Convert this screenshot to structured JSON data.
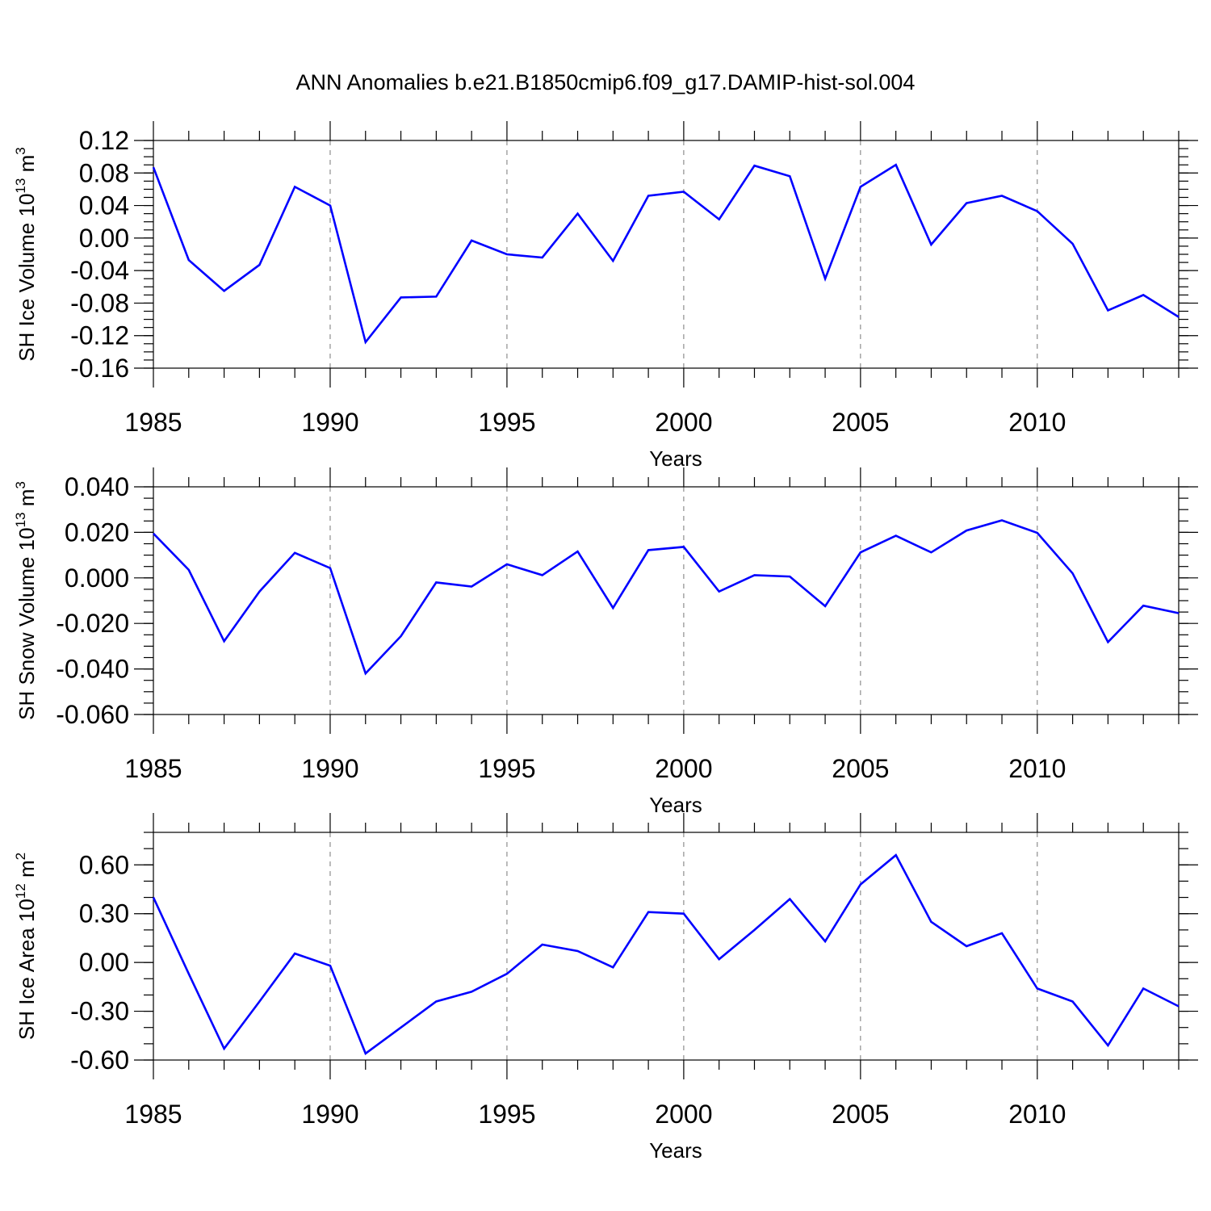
{
  "title": "ANN Anomalies b.e21.B1850cmip6.f09_g17.DAMIP-hist-sol.004",
  "chart_data": [
    {
      "type": "line",
      "ylabel": "SH Ice Volume 10",
      "ylabel_sup": "13",
      "ylabel_unit": " m",
      "ylabel_unit_sup": "3",
      "xlabel": "Years",
      "ylim": [
        -0.16,
        0.12
      ],
      "yticks": [
        "0.12",
        "0.08",
        "0.04",
        "0.00",
        "-0.04",
        "-0.08",
        "-0.12",
        "-0.16"
      ],
      "ytick_values": [
        0.12,
        0.08,
        0.04,
        0.0,
        -0.04,
        -0.08,
        -0.12,
        -0.16
      ],
      "xlim": [
        1985,
        2014
      ],
      "xticks": [
        "1985",
        "1990",
        "1995",
        "2000",
        "2005",
        "2010"
      ],
      "xtick_values": [
        1985,
        1990,
        1995,
        2000,
        2005,
        2010
      ],
      "grid": "dashed vertical lines at labeled years",
      "series": [
        {
          "color": "#0000ff",
          "x": [
            1985,
            1986,
            1987,
            1988,
            1989,
            1990,
            1991,
            1992,
            1993,
            1994,
            1995,
            1996,
            1997,
            1998,
            1999,
            2000,
            2001,
            2002,
            2003,
            2004,
            2005,
            2006,
            2007,
            2008,
            2009,
            2010,
            2011,
            2012,
            2013,
            2014
          ],
          "values": [
            0.087,
            -0.027,
            -0.065,
            -0.033,
            0.063,
            0.04,
            -0.128,
            -0.073,
            -0.072,
            -0.003,
            -0.02,
            -0.024,
            0.03,
            -0.028,
            0.052,
            0.057,
            0.023,
            0.089,
            0.076,
            -0.05,
            0.063,
            0.09,
            -0.008,
            0.043,
            0.052,
            0.033,
            -0.007,
            -0.089,
            -0.07,
            -0.097
          ]
        }
      ]
    },
    {
      "type": "line",
      "ylabel": "SH Snow Volume 10",
      "ylabel_sup": "13",
      "ylabel_unit": " m",
      "ylabel_unit_sup": "3",
      "xlabel": "Years",
      "ylim": [
        -0.06,
        0.04
      ],
      "yticks": [
        "0.040",
        "0.020",
        "0.000",
        "-0.020",
        "-0.040",
        "-0.060"
      ],
      "ytick_values": [
        0.04,
        0.02,
        0.0,
        -0.02,
        -0.04,
        -0.06
      ],
      "xlim": [
        1985,
        2014
      ],
      "xticks": [
        "1985",
        "1990",
        "1995",
        "2000",
        "2005",
        "2010"
      ],
      "xtick_values": [
        1985,
        1990,
        1995,
        2000,
        2005,
        2010
      ],
      "grid": "dashed vertical lines at labeled years",
      "series": [
        {
          "color": "#0000ff",
          "x": [
            1985,
            1986,
            1987,
            1988,
            1989,
            1990,
            1991,
            1992,
            1993,
            1994,
            1995,
            1996,
            1997,
            1998,
            1999,
            2000,
            2001,
            2002,
            2003,
            2004,
            2005,
            2006,
            2007,
            2008,
            2009,
            2010,
            2011,
            2012,
            2013,
            2014
          ],
          "values": [
            0.0195,
            0.0035,
            -0.0278,
            -0.006,
            0.011,
            0.0043,
            -0.042,
            -0.0256,
            -0.002,
            -0.0038,
            0.006,
            0.0012,
            0.0116,
            -0.0132,
            0.0122,
            0.0136,
            -0.006,
            0.0012,
            0.0006,
            -0.0124,
            0.0112,
            0.0185,
            0.0112,
            0.0208,
            0.0253,
            0.0198,
            0.002,
            -0.0282,
            -0.0122,
            -0.0155
          ]
        }
      ]
    },
    {
      "type": "line",
      "ylabel": "SH Ice Area 10",
      "ylabel_sup": "12",
      "ylabel_unit": " m",
      "ylabel_unit_sup": "2",
      "xlabel": "Years",
      "ylim": [
        -0.6,
        0.8
      ],
      "yticks": [
        "0.60",
        "0.30",
        "0.00",
        "-0.30",
        "-0.60"
      ],
      "ytick_values": [
        0.6,
        0.3,
        0.0,
        -0.3,
        -0.6
      ],
      "xlim": [
        1985,
        2014
      ],
      "xticks": [
        "1985",
        "1990",
        "1995",
        "2000",
        "2005",
        "2010"
      ],
      "xtick_values": [
        1985,
        1990,
        1995,
        2000,
        2005,
        2010
      ],
      "grid": "dashed vertical lines at labeled years",
      "series": [
        {
          "color": "#0000ff",
          "x": [
            1985,
            1986,
            1987,
            1988,
            1989,
            1990,
            1991,
            1992,
            1993,
            1994,
            1995,
            1996,
            1997,
            1998,
            1999,
            2000,
            2001,
            2002,
            2003,
            2004,
            2005,
            2006,
            2007,
            2008,
            2009,
            2010,
            2011,
            2012,
            2013,
            2014
          ],
          "values": [
            0.4,
            -0.07,
            -0.53,
            -0.24,
            0.055,
            -0.02,
            -0.56,
            -0.4,
            -0.24,
            -0.18,
            -0.07,
            0.11,
            0.07,
            -0.03,
            0.31,
            0.3,
            0.02,
            0.2,
            0.39,
            0.13,
            0.48,
            0.66,
            0.25,
            0.1,
            0.18,
            -0.16,
            -0.24,
            -0.51,
            -0.16,
            -0.27
          ]
        }
      ]
    }
  ]
}
